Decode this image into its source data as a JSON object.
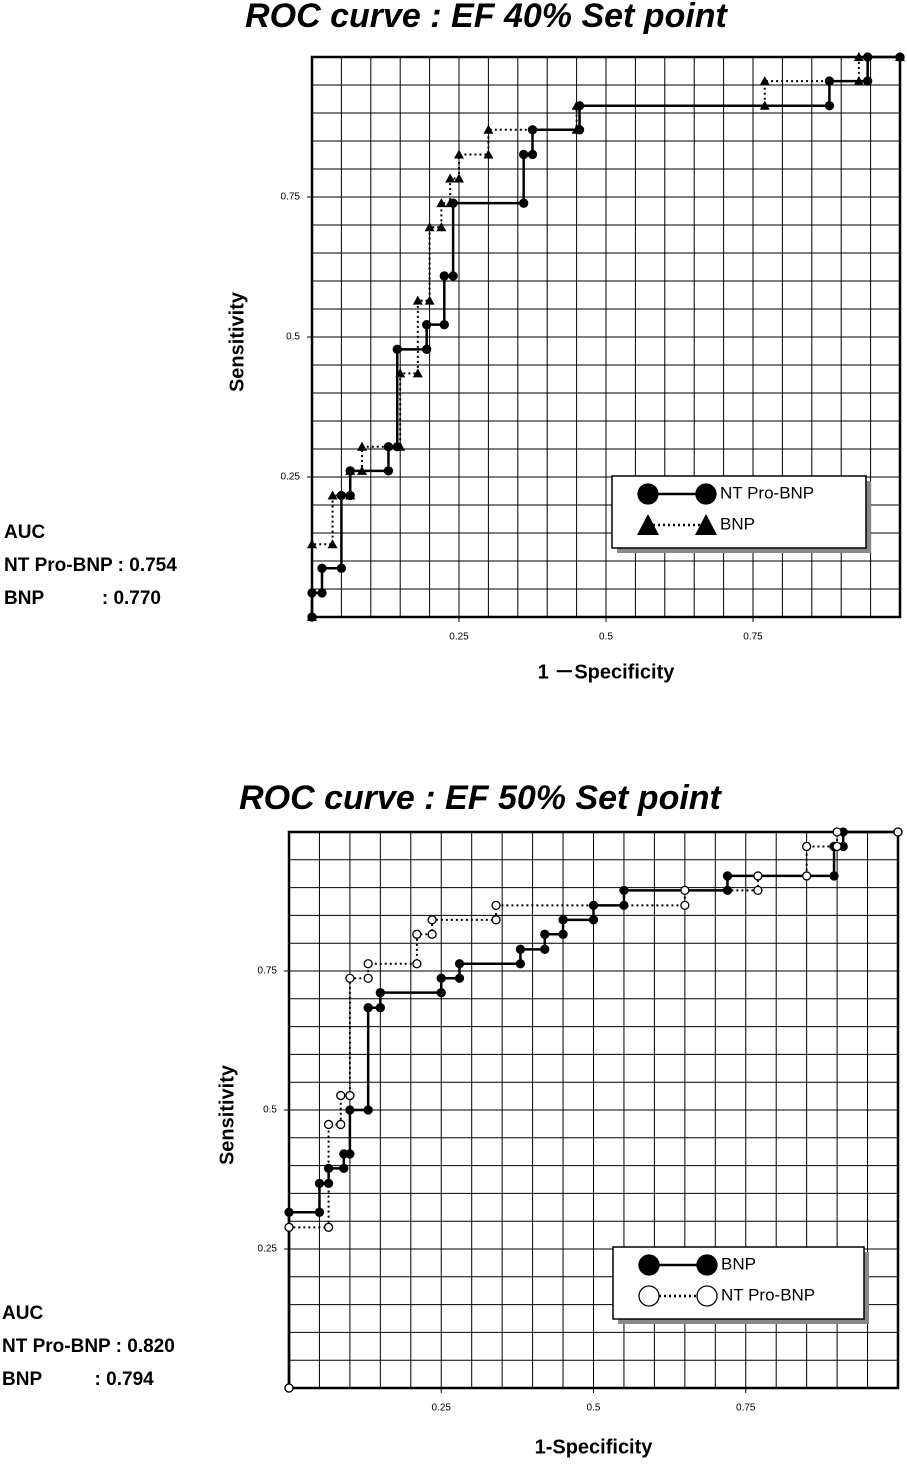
{
  "chart_data": [
    {
      "type": "line",
      "title": "ROC curve : EF 40% Set point",
      "x_label": "1 －Specificity",
      "y_label": "Sensitivity",
      "xlim": [
        0,
        1
      ],
      "ylim": [
        0,
        1
      ],
      "xticks": [
        0.25,
        0.5,
        0.75
      ],
      "yticks": [
        0.25,
        0.5,
        0.75
      ],
      "grid": true,
      "grid_step": 0.05,
      "legend": "lower right",
      "annotations": [
        "AUC",
        "NT Pro-BNP : 0.754",
        "BNP           : 0.770"
      ],
      "series": [
        {
          "name": "NT Pro-BNP",
          "color": "#000000",
          "marker": "circle",
          "marker_filled": true,
          "line_style": "solid",
          "x": [
            0,
            0,
            0.017,
            0.017,
            0.05,
            0.05,
            0.065,
            0.065,
            0.13,
            0.13,
            0.145,
            0.145,
            0.195,
            0.195,
            0.225,
            0.225,
            0.24,
            0.24,
            0.36,
            0.36,
            0.375,
            0.375,
            0.455,
            0.455,
            0.88,
            0.88,
            0.945,
            0.945,
            1
          ],
          "values": [
            0,
            0.043,
            0.043,
            0.087,
            0.087,
            0.217,
            0.217,
            0.261,
            0.261,
            0.304,
            0.304,
            0.478,
            0.478,
            0.522,
            0.522,
            0.609,
            0.609,
            0.739,
            0.739,
            0.826,
            0.826,
            0.87,
            0.87,
            0.913,
            0.913,
            0.957,
            0.957,
            1,
            1
          ]
        },
        {
          "name": "BNP",
          "color": "#000000",
          "marker": "triangle",
          "marker_filled": true,
          "line_style": "dotted",
          "x": [
            0,
            0,
            0.035,
            0.035,
            0.065,
            0.065,
            0.085,
            0.085,
            0.15,
            0.15,
            0.18,
            0.18,
            0.2,
            0.2,
            0.22,
            0.22,
            0.235,
            0.235,
            0.25,
            0.25,
            0.3,
            0.3,
            0.45,
            0.45,
            0.77,
            0.77,
            0.93,
            0.93,
            1
          ],
          "values": [
            0,
            0.13,
            0.13,
            0.217,
            0.217,
            0.261,
            0.261,
            0.304,
            0.304,
            0.435,
            0.435,
            0.565,
            0.565,
            0.696,
            0.696,
            0.739,
            0.739,
            0.783,
            0.783,
            0.826,
            0.826,
            0.87,
            0.87,
            0.913,
            0.913,
            0.957,
            0.957,
            1,
            1
          ]
        }
      ]
    },
    {
      "type": "line",
      "title": "ROC curve : EF 50% Set point",
      "x_label": "1-Specificity",
      "y_label": "Sensitivity",
      "xlim": [
        0,
        1
      ],
      "ylim": [
        0,
        1
      ],
      "xticks": [
        0.25,
        0.5,
        0.75
      ],
      "yticks": [
        0.25,
        0.5,
        0.75
      ],
      "grid": true,
      "grid_step": 0.05,
      "legend": "lower right",
      "annotations": [
        "AUC",
        "NT Pro-BNP : 0.820",
        "BNP          : 0.794"
      ],
      "series": [
        {
          "name": "BNP",
          "color": "#000000",
          "marker": "circle",
          "marker_filled": true,
          "line_style": "solid",
          "x": [
            0,
            0,
            0.05,
            0.05,
            0.065,
            0.065,
            0.09,
            0.09,
            0.1,
            0.1,
            0.13,
            0.13,
            0.15,
            0.15,
            0.25,
            0.25,
            0.28,
            0.28,
            0.38,
            0.38,
            0.42,
            0.42,
            0.45,
            0.45,
            0.5,
            0.5,
            0.55,
            0.55,
            0.72,
            0.72,
            0.895,
            0.895,
            0.91,
            0.91,
            1
          ],
          "values": [
            0,
            0.316,
            0.316,
            0.368,
            0.368,
            0.395,
            0.395,
            0.421,
            0.421,
            0.5,
            0.5,
            0.684,
            0.684,
            0.711,
            0.711,
            0.737,
            0.737,
            0.763,
            0.763,
            0.789,
            0.789,
            0.816,
            0.816,
            0.842,
            0.842,
            0.868,
            0.868,
            0.895,
            0.895,
            0.921,
            0.921,
            0.974,
            0.974,
            1,
            1
          ]
        },
        {
          "name": "NT Pro-BNP",
          "color": "#000000",
          "marker": "circle",
          "marker_filled": false,
          "line_style": "dotted",
          "x": [
            0,
            0,
            0.065,
            0.065,
            0.085,
            0.085,
            0.1,
            0.1,
            0.13,
            0.13,
            0.21,
            0.21,
            0.235,
            0.235,
            0.34,
            0.34,
            0.65,
            0.65,
            0.77,
            0.77,
            0.85,
            0.85,
            0.9,
            0.9,
            1
          ],
          "values": [
            0,
            0.289,
            0.289,
            0.474,
            0.474,
            0.526,
            0.526,
            0.737,
            0.737,
            0.763,
            0.763,
            0.816,
            0.816,
            0.842,
            0.842,
            0.868,
            0.868,
            0.895,
            0.895,
            0.921,
            0.921,
            0.974,
            0.974,
            1,
            1
          ]
        }
      ]
    }
  ]
}
